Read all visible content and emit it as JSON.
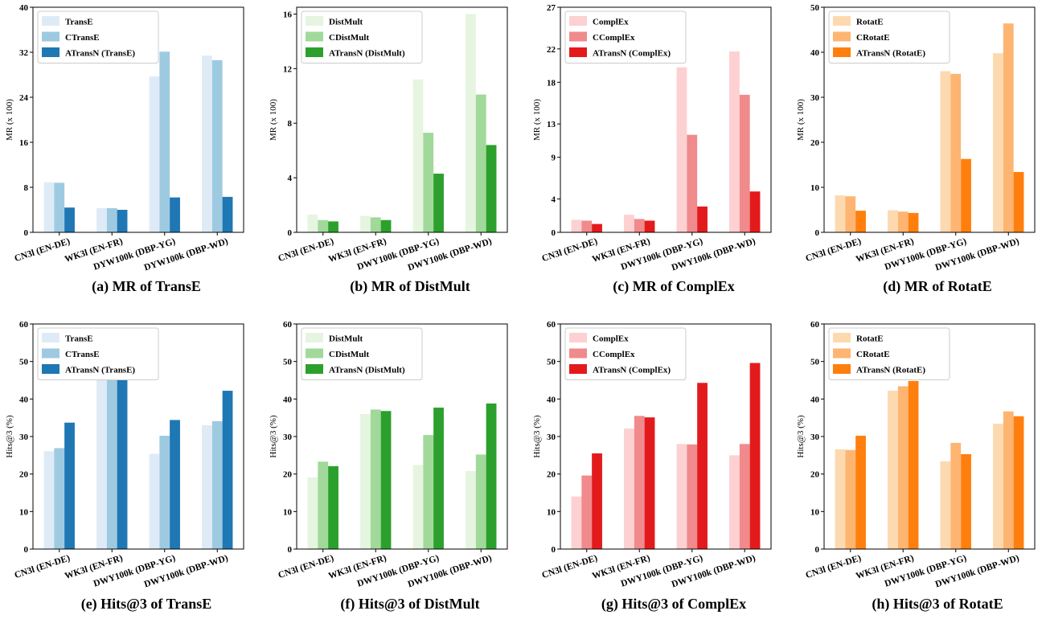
{
  "chart_data": [
    {
      "type": "bar",
      "caption": "(a) MR of TransE",
      "ylabel": "MR (x 100)",
      "ylim": [
        0,
        40
      ],
      "yticks": [
        0,
        8,
        16,
        24,
        32,
        40
      ],
      "categories": [
        "CN3l (EN-DE)",
        "WK3l (EN-FR)",
        "DYW100k (DBP-YG)",
        "DYW100k (DBP-WD)"
      ],
      "legend_position": "top-left",
      "series": [
        {
          "name": "TransE",
          "color": "#deebf7",
          "values": [
            8.9,
            4.3,
            27.7,
            31.4
          ]
        },
        {
          "name": "CTransE",
          "color": "#9ecae1",
          "values": [
            8.8,
            4.3,
            32.1,
            30.6
          ]
        },
        {
          "name": "ATransN (TransE)",
          "color": "#1f77b4",
          "values": [
            4.4,
            4.0,
            6.2,
            6.3
          ]
        }
      ]
    },
    {
      "type": "bar",
      "caption": "(b) MR of DistMult",
      "ylabel": "MR (x 100)",
      "ylim": [
        0,
        16.5
      ],
      "yticks": [
        0,
        4,
        8,
        12,
        16
      ],
      "categories": [
        "CN3l (EN-DE)",
        "WK3l (EN-FR)",
        "DWY100k (DBP-YG)",
        "DWY100k (DBP-WD)"
      ],
      "legend_position": "top-left",
      "series": [
        {
          "name": "DistMult",
          "color": "#e5f5e0",
          "values": [
            1.3,
            1.2,
            11.2,
            16.0
          ]
        },
        {
          "name": "CDistMult",
          "color": "#a1d99b",
          "values": [
            0.9,
            1.1,
            7.3,
            10.1
          ]
        },
        {
          "name": "ATransN (DistMult)",
          "color": "#2ca02c",
          "values": [
            0.8,
            0.9,
            4.3,
            6.4
          ]
        }
      ]
    },
    {
      "type": "bar",
      "caption": "(c) MR of ComplEx",
      "ylabel": "MR (x 100)",
      "ylim": [
        0,
        27
      ],
      "yticks": [
        0,
        4,
        9,
        13,
        18,
        22,
        27
      ],
      "categories": [
        "CN3l (EN-DE)",
        "WK3l (EN-FR)",
        "DWY100k (DBP-YG)",
        "DWY100k (DBP-WD)"
      ],
      "legend_position": "top-left",
      "series": [
        {
          "name": "ComplEx",
          "color": "#fdd0d2",
          "values": [
            1.5,
            2.1,
            19.8,
            21.7
          ]
        },
        {
          "name": "CComplEx",
          "color": "#f08a8c",
          "values": [
            1.4,
            1.6,
            11.7,
            16.5
          ]
        },
        {
          "name": "ATransN (ComplEx)",
          "color": "#e31a1c",
          "values": [
            1.0,
            1.4,
            3.1,
            4.9
          ]
        }
      ]
    },
    {
      "type": "bar",
      "caption": "(d) MR of RotatE",
      "ylabel": "MR (x 100)",
      "ylim": [
        0,
        50
      ],
      "yticks": [
        0,
        10,
        20,
        30,
        40,
        50
      ],
      "categories": [
        "CN3l (EN-DE)",
        "WK3l (EN-FR)",
        "DWY100k (DBP-YG)",
        "DWY100k (DBP-WD)"
      ],
      "legend_position": "top-left",
      "series": [
        {
          "name": "RotatE",
          "color": "#fdd9b0",
          "values": [
            8.2,
            4.9,
            35.8,
            39.8
          ]
        },
        {
          "name": "CRotatE",
          "color": "#fdb571",
          "values": [
            8.0,
            4.6,
            35.2,
            46.4
          ]
        },
        {
          "name": "ATransN (RotatE)",
          "color": "#ff7f0e",
          "values": [
            4.8,
            4.3,
            16.3,
            13.4
          ]
        }
      ]
    },
    {
      "type": "bar",
      "caption": "(e) Hits@3 of TransE",
      "ylabel": "Hits@3 (%)",
      "ylim": [
        0,
        60
      ],
      "yticks": [
        0,
        10,
        20,
        30,
        40,
        50,
        60
      ],
      "categories": [
        "CN3l (EN-DE)",
        "WK3l (EN-FR)",
        "DWY100k (DBP-YG)",
        "DWY100k (DBP-WD)"
      ],
      "legend_position": "top-left",
      "series": [
        {
          "name": "TransE",
          "color": "#deebf7",
          "values": [
            26.1,
            45.4,
            25.4,
            33.0
          ]
        },
        {
          "name": "CTransE",
          "color": "#9ecae1",
          "values": [
            26.9,
            45.7,
            30.2,
            34.1
          ]
        },
        {
          "name": "ATransN (TransE)",
          "color": "#1f77b4",
          "values": [
            33.7,
            45.7,
            34.4,
            42.2
          ]
        }
      ]
    },
    {
      "type": "bar",
      "caption": "(f) Hits@3 of DistMult",
      "ylabel": "Hits@3 (%)",
      "ylim": [
        0,
        60
      ],
      "yticks": [
        0,
        10,
        20,
        30,
        40,
        50,
        60
      ],
      "categories": [
        "CN3l (EN-DE)",
        "WK3l (EN-FR)",
        "DWY100k (DBP-YG)",
        "DWY100k (DBP-WD)"
      ],
      "legend_position": "top-left",
      "series": [
        {
          "name": "DistMult",
          "color": "#e5f5e0",
          "values": [
            19.1,
            36.0,
            22.4,
            20.8
          ]
        },
        {
          "name": "CDistMult",
          "color": "#a1d99b",
          "values": [
            23.3,
            37.2,
            30.4,
            25.2
          ]
        },
        {
          "name": "ATransN (DistMult)",
          "color": "#2ca02c",
          "values": [
            22.1,
            36.8,
            37.7,
            38.8
          ]
        }
      ]
    },
    {
      "type": "bar",
      "caption": "(g) Hits@3 of ComplEx",
      "ylabel": "Hits@3 (%)",
      "ylim": [
        0,
        60
      ],
      "yticks": [
        0,
        10,
        20,
        30,
        40,
        50,
        60
      ],
      "categories": [
        "CN3l (EN-DE)",
        "WK3l (EN-FR)",
        "DWY100k (DBP-YG)",
        "DWY100k (DBP-WD)"
      ],
      "legend_position": "top-left",
      "series": [
        {
          "name": "ComplEx",
          "color": "#fdd0d2",
          "values": [
            14.0,
            32.1,
            28.0,
            25.0
          ]
        },
        {
          "name": "CComplEx",
          "color": "#f08a8c",
          "values": [
            19.6,
            35.5,
            27.9,
            28.0
          ]
        },
        {
          "name": "ATransN (ComplEx)",
          "color": "#e31a1c",
          "values": [
            25.5,
            35.1,
            44.3,
            49.6
          ]
        }
      ]
    },
    {
      "type": "bar",
      "caption": "(h) Hits@3 of RotatE",
      "ylabel": "Hits@3 (%)",
      "ylim": [
        0,
        60
      ],
      "yticks": [
        0,
        10,
        20,
        30,
        40,
        50,
        60
      ],
      "categories": [
        "CN3l (EN-DE)",
        "WK3l (EN-FR)",
        "DWY100k (DBP-YG)",
        "DWY100k (DBP-WD)"
      ],
      "legend_position": "top-left",
      "series": [
        {
          "name": "RotatE",
          "color": "#fdd9b0",
          "values": [
            26.6,
            42.2,
            23.4,
            33.4
          ]
        },
        {
          "name": "CRotatE",
          "color": "#fdb571",
          "values": [
            26.4,
            43.4,
            28.3,
            36.7
          ]
        },
        {
          "name": "ATransN (RotatE)",
          "color": "#ff7f0e",
          "values": [
            30.2,
            44.8,
            25.3,
            35.4
          ]
        }
      ]
    }
  ]
}
